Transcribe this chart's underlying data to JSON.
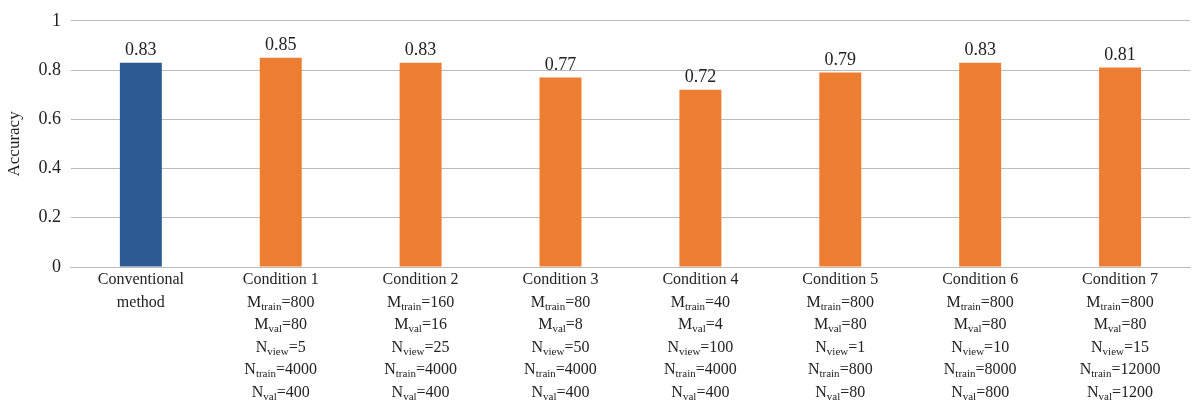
{
  "chart_data": {
    "type": "bar",
    "ylabel": "Accuracy",
    "categories": [
      "Conventional\nmethod",
      "Condition 1\nM$_{train}$=800\nM$_{val}$=80\nN$_{view}$=5\nN$_{train}$=4000\nN$_{val}$=400",
      "Condition 2\nM$_{train}$=160\nM$_{val}$=16\nN$_{view}$=25\nN$_{train}$=4000\nN$_{val}$=400",
      "Condition 3\nM$_{train}$=80\nM$_{val}$=8\nN$_{view}$=50\nN$_{train}$=4000\nN$_{val}$=400",
      "Condition 4\nM$_{train}$=40\nM$_{val}$=4\nN$_{view}$=100\nN$_{train}$=4000\nN$_{val}$=400",
      "Condition 5\nM$_{train}$=800\nM$_{val}$=80\nN$_{view}$=1\nN$_{train}$=800\nN$_{val}$=80",
      "Condition 6\nM$_{train}$=800\nM$_{val}$=80\nN$_{view}$=10\nN$_{train}$=8000\nN$_{val}$=800",
      "Condition 7\nM$_{train}$=800\nM$_{val}$=80\nN$_{view}$=15\nN$_{train}$=12000\nN$_{val}$=1200"
    ],
    "values": [
      0.83,
      0.85,
      0.83,
      0.77,
      0.72,
      0.79,
      0.83,
      0.81
    ],
    "colors": [
      "#2e5a94",
      "#ed7d31",
      "#ed7d31",
      "#ed7d31",
      "#ed7d31",
      "#ed7d31",
      "#ed7d31",
      "#ed7d31"
    ],
    "ylim": [
      0,
      1
    ],
    "yticks": [
      0,
      0.2,
      0.4,
      0.6,
      0.8,
      1
    ],
    "grid": "y",
    "data_labels": true
  }
}
